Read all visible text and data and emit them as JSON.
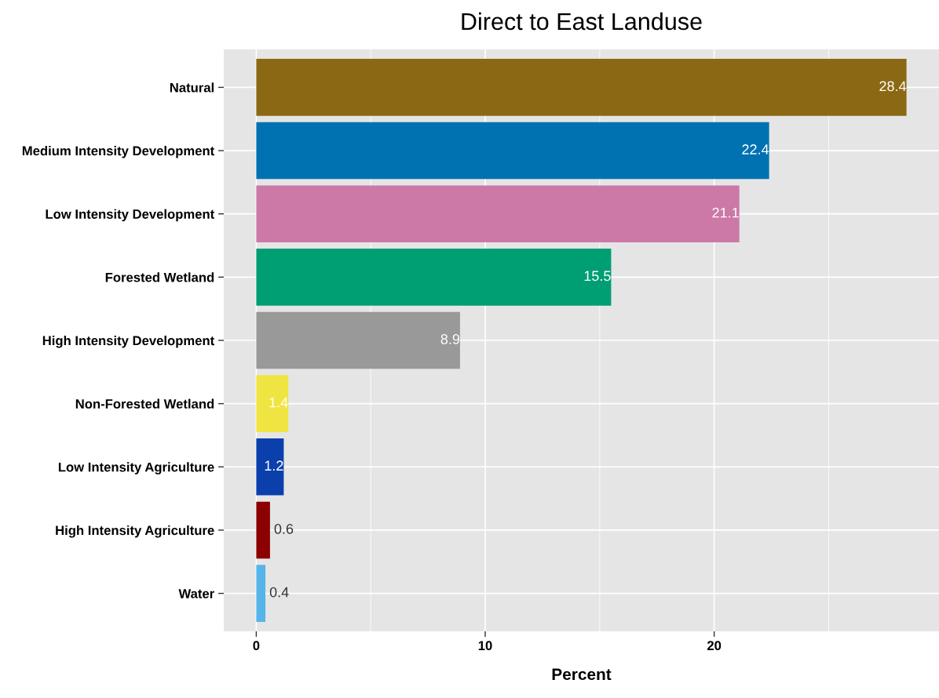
{
  "chart_data": {
    "type": "bar",
    "orientation": "horizontal",
    "title": "Direct to East Landuse",
    "xlabel": "Percent",
    "categories": [
      "Natural",
      "Medium Intensity Development",
      "Low Intensity Development",
      "Forested Wetland",
      "High Intensity Development",
      "Non-Forested Wetland",
      "Low Intensity Agriculture",
      "High Intensity Agriculture",
      "Water"
    ],
    "values": [
      28.4,
      22.4,
      21.1,
      15.5,
      8.9,
      1.4,
      1.2,
      0.6,
      0.4
    ],
    "colors": [
      "#8b6914",
      "#0072b2",
      "#cc79a7",
      "#009e73",
      "#999999",
      "#f0e442",
      "#0a3fac",
      "#8b0000",
      "#56b4e9"
    ],
    "xlim": [
      -1.42,
      29.82
    ],
    "xticks": [
      0,
      10,
      20
    ],
    "grid": true,
    "data_labels": true
  }
}
